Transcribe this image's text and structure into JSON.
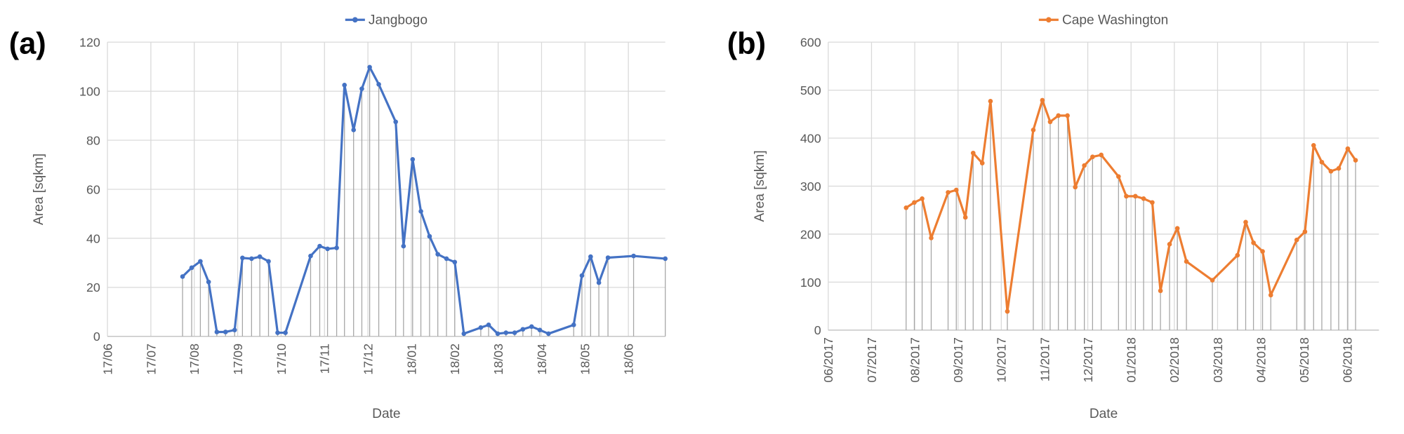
{
  "chart_data": [
    {
      "type": "line",
      "panel_label": "(a)",
      "legend": "top",
      "grid": true,
      "drop_lines": true,
      "xlabel": "Date",
      "ylabel": "Area [sqkm]",
      "xlim": [
        0,
        12.85
      ],
      "ylim": [
        0,
        120
      ],
      "yticks": [
        0,
        20,
        40,
        60,
        80,
        100,
        120
      ],
      "xticks": [
        {
          "value": 0,
          "label": "17/06"
        },
        {
          "value": 1,
          "label": "17/07"
        },
        {
          "value": 2,
          "label": "17/08"
        },
        {
          "value": 3,
          "label": "17/09"
        },
        {
          "value": 4,
          "label": "17/10"
        },
        {
          "value": 5,
          "label": "17/11"
        },
        {
          "value": 6,
          "label": "17/12"
        },
        {
          "value": 7,
          "label": "18/01"
        },
        {
          "value": 8,
          "label": "18/02"
        },
        {
          "value": 9,
          "label": "18/03"
        },
        {
          "value": 10,
          "label": "18/04"
        },
        {
          "value": 11,
          "label": "18/05"
        },
        {
          "value": 12,
          "label": "18/06"
        }
      ],
      "x": [
        1.73,
        1.94,
        2.14,
        2.33,
        2.52,
        2.72,
        2.93,
        3.11,
        3.32,
        3.51,
        3.71,
        3.92,
        4.1,
        4.68,
        4.89,
        5.07,
        5.28,
        5.46,
        5.67,
        5.86,
        6.04,
        6.25,
        6.64,
        6.82,
        7.03,
        7.22,
        7.42,
        7.61,
        7.81,
        8.0,
        8.21,
        8.6,
        8.78,
        8.99,
        9.18,
        9.38,
        9.57,
        9.77,
        9.96,
        10.16,
        10.74,
        10.93,
        11.13,
        11.32,
        11.53,
        12.12,
        12.85
      ],
      "series": [
        {
          "name": "Jangbogo",
          "color": "#4472c4",
          "values": [
            24.4,
            28,
            30.6,
            22.2,
            1.8,
            1.8,
            2.6,
            32,
            31.7,
            32.5,
            30.6,
            1.5,
            1.5,
            32.8,
            36.8,
            35.7,
            36.1,
            102.5,
            84.2,
            101,
            109.8,
            102.8,
            87.5,
            36.8,
            72.2,
            51,
            40.8,
            33.5,
            31.7,
            30.3,
            1.1,
            3.6,
            4.7,
            1.1,
            1.5,
            1.5,
            2.9,
            4.0,
            2.6,
            1.1,
            4.7,
            24.8,
            32.5,
            21.9,
            32.1,
            32.8,
            31.7
          ]
        }
      ]
    },
    {
      "type": "line",
      "panel_label": "(b)",
      "legend": "top",
      "grid": true,
      "drop_lines": true,
      "xlabel": "Date",
      "ylabel": "Area [sqkm]",
      "xlim": [
        0,
        12.73
      ],
      "ylim": [
        0,
        600
      ],
      "yticks": [
        0,
        100,
        200,
        300,
        400,
        500,
        600
      ],
      "xticks": [
        {
          "value": 0,
          "label": "06/2017"
        },
        {
          "value": 1,
          "label": "07/2017"
        },
        {
          "value": 2,
          "label": "08/2017"
        },
        {
          "value": 3,
          "label": "09/2017"
        },
        {
          "value": 4,
          "label": "10/2017"
        },
        {
          "value": 5,
          "label": "11/2017"
        },
        {
          "value": 6,
          "label": "12/2017"
        },
        {
          "value": 7,
          "label": "01/2018"
        },
        {
          "value": 8,
          "label": "02/2018"
        },
        {
          "value": 9,
          "label": "03/2018"
        },
        {
          "value": 10,
          "label": "04/2018"
        },
        {
          "value": 11,
          "label": "05/2018"
        },
        {
          "value": 12,
          "label": "06/2018"
        }
      ],
      "x": [
        1.8,
        1.99,
        2.17,
        2.38,
        2.77,
        2.96,
        3.17,
        3.35,
        3.56,
        3.75,
        4.14,
        4.74,
        4.95,
        5.13,
        5.32,
        5.53,
        5.71,
        5.92,
        6.11,
        6.31,
        6.71,
        6.89,
        7.1,
        7.29,
        7.49,
        7.68,
        7.89,
        8.07,
        8.28,
        8.88,
        9.46,
        9.65,
        9.83,
        10.04,
        10.23,
        10.83,
        11.02,
        11.22,
        11.41,
        11.62,
        11.8,
        12.01,
        12.19
      ],
      "series": [
        {
          "name": "Cape Washington",
          "color": "#ed7d31",
          "values": [
            255,
            266,
            274,
            192,
            287,
            292,
            235,
            369,
            348,
            477,
            39,
            417,
            479,
            434,
            447,
            447,
            298,
            343,
            361,
            365,
            320,
            279,
            279,
            274,
            266,
            82,
            179,
            212,
            143,
            104,
            156,
            225,
            182,
            164,
            73,
            188,
            205,
            385,
            350,
            331,
            337,
            378,
            354
          ]
        }
      ]
    }
  ]
}
